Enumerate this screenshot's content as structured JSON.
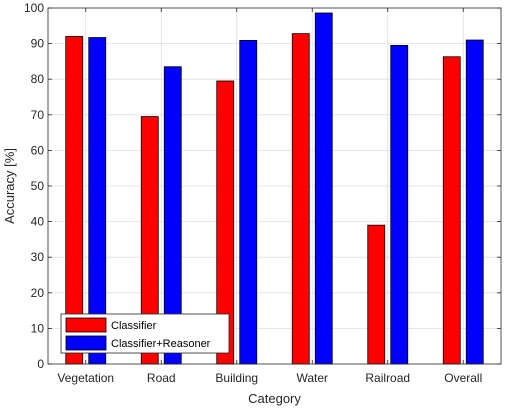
{
  "chart_data": {
    "type": "bar",
    "categories": [
      "Vegetation",
      "Road",
      "Building",
      "Water",
      "Railroad",
      "Overall"
    ],
    "series": [
      {
        "name": "Classifier",
        "color": "#ff0000",
        "values": [
          92.0,
          69.5,
          79.5,
          92.8,
          39.0,
          86.3
        ]
      },
      {
        "name": "Classifier+Reasoner",
        "color": "#0000ff",
        "values": [
          91.7,
          83.5,
          90.9,
          98.6,
          89.5,
          91.0
        ]
      }
    ],
    "xlabel": "Category",
    "ylabel": "Accuracy [%]",
    "ylim": [
      0,
      100
    ],
    "yticks": [
      0,
      10,
      20,
      30,
      40,
      50,
      60,
      70,
      80,
      90,
      100
    ],
    "grid": true,
    "legend_position": "bottom-left"
  }
}
